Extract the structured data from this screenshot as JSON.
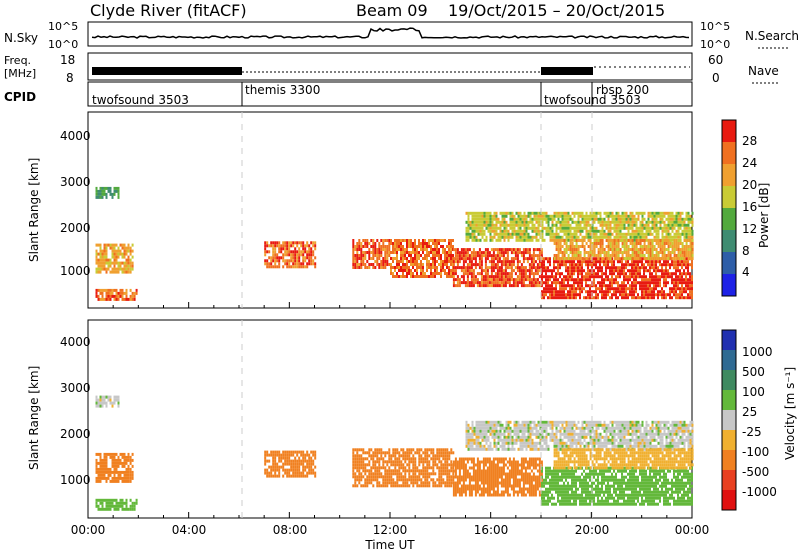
{
  "header": {
    "station": "Clyde River (fitACF)",
    "beam": "Beam 09",
    "dates": "19/Oct/2015 – 20/Oct/2015"
  },
  "strip": {
    "nsky_label": "N.Sky",
    "nsky_top": "10^5",
    "nsky_bottom": "10^0",
    "nsearch_label": "N.Search",
    "right_top": "10^5",
    "right_bottom": "10^0",
    "freq_label_1": "Freq.",
    "freq_label_2": "[MHz]",
    "freq_top": "18",
    "freq_bottom": "8",
    "nave_label": "Nave",
    "nave_top": "60",
    "nave_bottom": "0",
    "cpid_label": "CPID"
  },
  "cpid_segments": [
    {
      "name": "twofsound 3503",
      "start_hour": 0
    },
    {
      "name": "themis 3300",
      "start_hour": 6
    },
    {
      "name": "twofsound 3503",
      "start_hour": 18
    },
    {
      "name": "rbsp 200",
      "start_hour": 20
    }
  ],
  "axes": {
    "ylabel": "Slant Range [km]",
    "xlabel": "Time UT",
    "y_ticks": [
      "1000",
      "2000",
      "3000",
      "4000"
    ],
    "x_ticks": [
      "00:00",
      "04:00",
      "08:00",
      "12:00",
      "16:00",
      "20:00",
      "00:00"
    ]
  },
  "colorbars": {
    "power": {
      "label": "Power [dB]",
      "ticks": [
        "4",
        "8",
        "12",
        "16",
        "20",
        "24",
        "28"
      ],
      "colors": [
        "#1e22e6",
        "#2e5ea8",
        "#3f8c72",
        "#52a93d",
        "#c9cb35",
        "#f0a030",
        "#f07020",
        "#e81a10"
      ]
    },
    "velocity": {
      "label": "Velocity [m s⁻¹]",
      "ticks": [
        "1000",
        "500",
        "100",
        "25",
        "-25",
        "-100",
        "-500",
        "-1000"
      ],
      "colors": [
        "#2030b0",
        "#2f6a92",
        "#3f8a60",
        "#63b83a",
        "#c7c7c7",
        "#f0b030",
        "#f08020",
        "#e84020",
        "#e01010"
      ]
    }
  },
  "chart_data": [
    {
      "type": "heatmap",
      "panel": "power",
      "xlabel": "Time UT",
      "ylabel": "Slant Range [km]",
      "xlim": [
        0,
        24
      ],
      "ylim": [
        180,
        4500
      ],
      "unit": "dB",
      "clim": [
        0,
        32
      ],
      "regions": [
        {
          "t0": 0.3,
          "t1": 1.8,
          "r0": 1000,
          "r1": 1600,
          "value": 22
        },
        {
          "t0": 0.3,
          "t1": 1.9,
          "r0": 350,
          "r1": 600,
          "value": 26
        },
        {
          "t0": 0.3,
          "t1": 1.2,
          "r0": 2600,
          "r1": 2850,
          "value": 12
        },
        {
          "t0": 7.0,
          "t1": 9.0,
          "r0": 1100,
          "r1": 1650,
          "value": 26
        },
        {
          "t0": 10.5,
          "t1": 12.0,
          "r0": 1100,
          "r1": 1700,
          "value": 27
        },
        {
          "t0": 12.0,
          "t1": 14.5,
          "r0": 900,
          "r1": 1700,
          "value": 26
        },
        {
          "t0": 14.5,
          "t1": 18.0,
          "r0": 700,
          "r1": 1500,
          "value": 28
        },
        {
          "t0": 18.0,
          "t1": 24.0,
          "r0": 400,
          "r1": 1300,
          "value": 30
        },
        {
          "t0": 15.0,
          "t1": 24.0,
          "r0": 1700,
          "r1": 2300,
          "value": 18
        },
        {
          "t0": 18.5,
          "t1": 24.0,
          "r0": 1300,
          "r1": 1700,
          "value": 22
        }
      ]
    },
    {
      "type": "heatmap",
      "panel": "velocity",
      "xlabel": "Time UT",
      "ylabel": "Slant Range [km]",
      "xlim": [
        0,
        24
      ],
      "ylim": [
        180,
        4500
      ],
      "unit": "m s^-1",
      "regions": [
        {
          "t0": 0.3,
          "t1": 1.8,
          "r0": 1000,
          "r1": 1600,
          "value": -150
        },
        {
          "t0": 0.3,
          "t1": 1.9,
          "r0": 350,
          "r1": 600,
          "value": 80
        },
        {
          "t0": 0.3,
          "t1": 1.2,
          "r0": 2600,
          "r1": 2850,
          "value": 0
        },
        {
          "t0": 7.0,
          "t1": 9.0,
          "r0": 1100,
          "r1": 1650,
          "value": -200
        },
        {
          "t0": 10.5,
          "t1": 14.5,
          "r0": 900,
          "r1": 1700,
          "value": -300
        },
        {
          "t0": 14.5,
          "t1": 18.0,
          "r0": 700,
          "r1": 1500,
          "value": -200
        },
        {
          "t0": 18.0,
          "t1": 24.0,
          "r0": 500,
          "r1": 1300,
          "value": 50
        },
        {
          "t0": 15.0,
          "t1": 24.0,
          "r0": 1700,
          "r1": 2300,
          "value": 0
        },
        {
          "t0": 18.5,
          "t1": 24.0,
          "r0": 1300,
          "r1": 1700,
          "value": -50
        }
      ]
    }
  ]
}
